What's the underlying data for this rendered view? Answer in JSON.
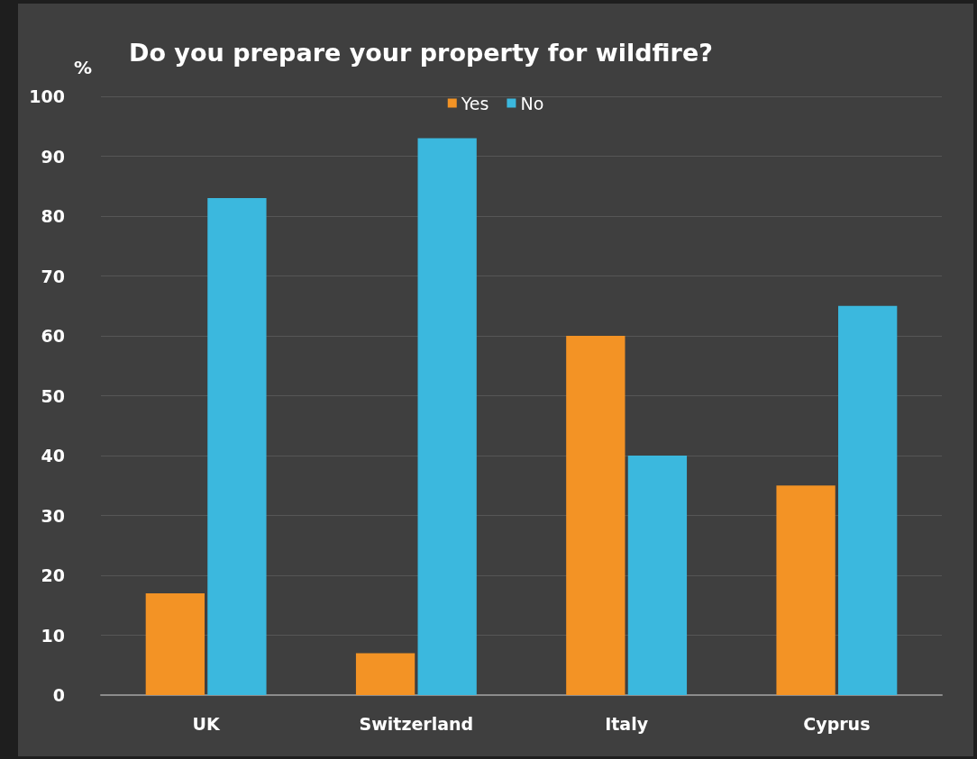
{
  "chart_data": {
    "type": "bar",
    "title": "Do you prepare your property for wildfire?",
    "ylabel": "%",
    "categories": [
      "UK",
      "Switzerland",
      "Italy",
      "Cyprus"
    ],
    "series": [
      {
        "name": "Yes",
        "color": "#f39325",
        "values": [
          17,
          7,
          60,
          35
        ]
      },
      {
        "name": "No",
        "color": "#3bb8de",
        "values": [
          83,
          93,
          40,
          65
        ]
      }
    ],
    "ylim": [
      0,
      100
    ],
    "yticks": [
      0,
      10,
      20,
      30,
      40,
      50,
      60,
      70,
      80,
      90,
      100
    ],
    "grid": "y",
    "legend": "top"
  }
}
